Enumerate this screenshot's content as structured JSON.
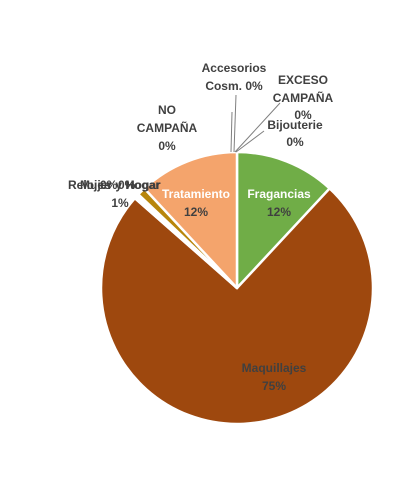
{
  "chart_data": {
    "type": "pie",
    "title": "",
    "slices": [
      {
        "name": "Fragancias",
        "value": 12,
        "label": "12%",
        "color": "#70ad47"
      },
      {
        "name": "Maquillajes",
        "value": 75,
        "label": "75%",
        "color": "#9e480e"
      },
      {
        "name": "Relojes",
        "value": 0.3,
        "label": "0%",
        "color": "#636363"
      },
      {
        "name": "Hogar",
        "value": 0.3,
        "label": "0%",
        "color": "#997300"
      },
      {
        "name": "Mujer y Hogar",
        "value": 1,
        "label": "1%",
        "color": "#b8860b"
      },
      {
        "name": "Tratamiento",
        "value": 12,
        "label": "12%",
        "color": "#f4a46c"
      },
      {
        "name": "NO CAMPAÑA",
        "value": 0,
        "label": "0%",
        "color": "#ed7d31"
      },
      {
        "name": "Accesorios Cosm.",
        "value": 0,
        "label": "0%",
        "color": "#a5a5a5"
      },
      {
        "name": "EXCESO CAMPAÑA",
        "value": 0,
        "label": "0%",
        "color": "#ffc000"
      },
      {
        "name": "Bijouterie",
        "value": 0,
        "label": "0%",
        "color": "#4472c4"
      }
    ]
  }
}
